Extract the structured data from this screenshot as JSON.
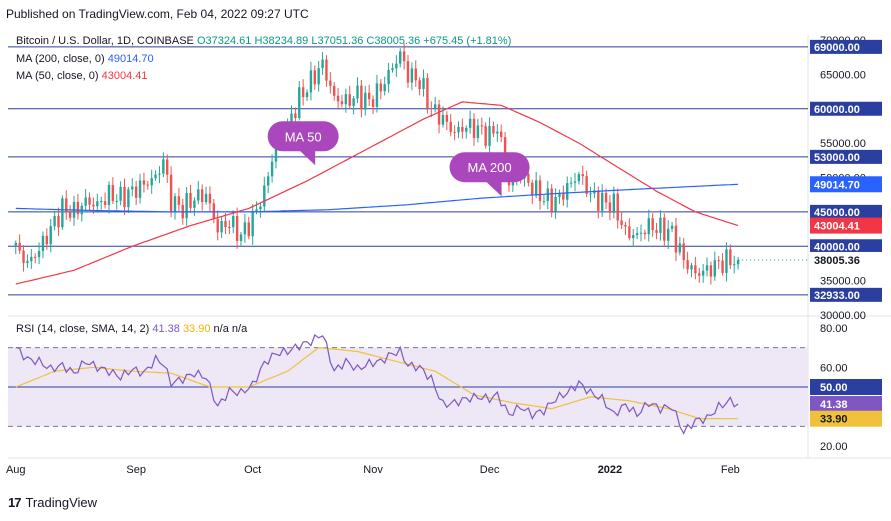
{
  "header": {
    "published": "Published on TradingView.com, Feb 04, 2022 09:27 UTC"
  },
  "legend": {
    "symbol": "Bitcoin / U.S. Dollar, 1D, COINBASE",
    "open": "O37324.61",
    "high": "H38234.89",
    "low": "L37051.36",
    "close": "C38005.36",
    "change": "+675.45 (+1.81%)",
    "ma200_label": "MA (200, close, 0)",
    "ma200_value": "49014.70",
    "ma50_label": "MA (50, close, 0)",
    "ma50_value": "43004.41",
    "rsi_label": "RSI (14, close, SMA, 14, 2)",
    "rsi_value": "41.38",
    "rsi_sma_value": "33.90",
    "rsi_na1": "n/a",
    "rsi_na2": "n/a"
  },
  "footer": {
    "brand": "TradingView"
  },
  "colors": {
    "up": "#26a69a",
    "down": "#ef5350",
    "ma200": "#2962ff",
    "ma50": "#f23645",
    "hline": "#2a3f9f",
    "rsi": "#7e57c2",
    "rsi_sma": "#f0c23c",
    "rsi_band": "#ede7f6",
    "callout": "#ab47bc",
    "price_tag": "#089981"
  },
  "chart_data": [
    {
      "type": "candlestick",
      "title": "Bitcoin / U.S. Dollar, 1D, COINBASE",
      "ylim": [
        30000,
        70000
      ],
      "y_ticks": [
        30000,
        35000,
        40000,
        45000,
        50000,
        55000,
        60000,
        65000,
        70000
      ],
      "x_labels": [
        "Aug",
        "Sep",
        "Oct",
        "Nov",
        "Dec",
        "2022",
        "Feb"
      ],
      "x_label_days": [
        0,
        31,
        61,
        92,
        122,
        153,
        184
      ],
      "horizontal_levels": [
        {
          "value": 69000,
          "label": "69000.00"
        },
        {
          "value": 60000,
          "label": "60000.00"
        },
        {
          "value": 53000,
          "label": "53000.00"
        },
        {
          "value": 45000,
          "label": "45000.00"
        },
        {
          "value": 40000,
          "label": "40000.00"
        },
        {
          "value": 32933,
          "label": "32933.00"
        }
      ],
      "price_tags": [
        {
          "value": 49014.7,
          "label": "49014.70",
          "kind": "ma200"
        },
        {
          "value": 43004.41,
          "label": "43004.41",
          "kind": "ma50"
        },
        {
          "value": 38005.36,
          "label": "38005.36",
          "kind": "last"
        }
      ],
      "close_anchors": [
        [
          0,
          39800
        ],
        [
          3,
          37500
        ],
        [
          6,
          39500
        ],
        [
          9,
          42500
        ],
        [
          12,
          45500
        ],
        [
          15,
          45000
        ],
        [
          18,
          46500
        ],
        [
          21,
          46000
        ],
        [
          24,
          47500
        ],
        [
          27,
          47000
        ],
        [
          30,
          48000
        ],
        [
          33,
          49000
        ],
        [
          36,
          50000
        ],
        [
          38,
          52500
        ],
        [
          40,
          46500
        ],
        [
          43,
          45500
        ],
        [
          46,
          47000
        ],
        [
          49,
          47500
        ],
        [
          52,
          42500
        ],
        [
          55,
          43500
        ],
        [
          58,
          41500
        ],
        [
          61,
          44000
        ],
        [
          64,
          48000
        ],
        [
          67,
          55000
        ],
        [
          70,
          57500
        ],
        [
          73,
          61500
        ],
        [
          76,
          64000
        ],
        [
          79,
          66500
        ],
        [
          82,
          61500
        ],
        [
          85,
          61000
        ],
        [
          88,
          62000
        ],
        [
          91,
          61000
        ],
        [
          94,
          63000
        ],
        [
          97,
          66000
        ],
        [
          99,
          68000
        ],
        [
          101,
          65000
        ],
        [
          104,
          64000
        ],
        [
          107,
          60000
        ],
        [
          110,
          58500
        ],
        [
          113,
          56500
        ],
        [
          116,
          57500
        ],
        [
          119,
          57000
        ],
        [
          122,
          56000
        ],
        [
          124,
          57500
        ],
        [
          127,
          49000
        ],
        [
          130,
          50500
        ],
        [
          133,
          48500
        ],
        [
          136,
          47000
        ],
        [
          139,
          46500
        ],
        [
          142,
          48500
        ],
        [
          145,
          50500
        ],
        [
          148,
          47500
        ],
        [
          151,
          46500
        ],
        [
          154,
          46000
        ],
        [
          157,
          42000
        ],
        [
          160,
          41500
        ],
        [
          163,
          43000
        ],
        [
          166,
          42500
        ],
        [
          169,
          42000
        ],
        [
          172,
          38000
        ],
        [
          175,
          36000
        ],
        [
          178,
          36500
        ],
        [
          181,
          37500
        ],
        [
          184,
          38000
        ],
        [
          186,
          38005.36
        ]
      ],
      "ma200_anchors": [
        [
          0,
          45500
        ],
        [
          20,
          45200
        ],
        [
          40,
          45000
        ],
        [
          60,
          45000
        ],
        [
          80,
          45300
        ],
        [
          100,
          46000
        ],
        [
          120,
          47000
        ],
        [
          140,
          47700
        ],
        [
          160,
          48300
        ],
        [
          186,
          49014.7
        ]
      ],
      "ma50_anchors": [
        [
          0,
          34500
        ],
        [
          15,
          36500
        ],
        [
          30,
          40000
        ],
        [
          45,
          43000
        ],
        [
          60,
          45500
        ],
        [
          75,
          49500
        ],
        [
          90,
          54000
        ],
        [
          105,
          58500
        ],
        [
          115,
          61000
        ],
        [
          125,
          60500
        ],
        [
          135,
          58000
        ],
        [
          145,
          55000
        ],
        [
          155,
          51500
        ],
        [
          165,
          48000
        ],
        [
          175,
          45000
        ],
        [
          186,
          43004.41
        ]
      ],
      "callouts": [
        {
          "text": "MA 50",
          "day": 74,
          "value": 56000,
          "points_to": "ma50"
        },
        {
          "text": "MA 200",
          "day": 122,
          "value": 51500,
          "points_to": "ma200"
        }
      ]
    },
    {
      "type": "line",
      "title": "RSI (14, close, SMA, 14, 2)",
      "ylim": [
        15,
        85
      ],
      "y_ticks": [
        20.0,
        60.0,
        80.0
      ],
      "band": [
        30,
        70
      ],
      "levels": [
        {
          "value": 50,
          "label": "50.00"
        }
      ],
      "value_tags": [
        {
          "value": 41.38,
          "label": "41.38",
          "kind": "rsi"
        },
        {
          "value": 33.9,
          "label": "33.90",
          "kind": "sma"
        }
      ],
      "rsi_anchors": [
        [
          0,
          70
        ],
        [
          3,
          64
        ],
        [
          6,
          63
        ],
        [
          9,
          59
        ],
        [
          12,
          61
        ],
        [
          15,
          57
        ],
        [
          18,
          63
        ],
        [
          21,
          60
        ],
        [
          24,
          58
        ],
        [
          27,
          55
        ],
        [
          30,
          59
        ],
        [
          33,
          57
        ],
        [
          36,
          64
        ],
        [
          38,
          62
        ],
        [
          40,
          52
        ],
        [
          43,
          54
        ],
        [
          46,
          57
        ],
        [
          49,
          55
        ],
        [
          52,
          40
        ],
        [
          55,
          48
        ],
        [
          58,
          47
        ],
        [
          61,
          51
        ],
        [
          64,
          62
        ],
        [
          67,
          67
        ],
        [
          70,
          68
        ],
        [
          73,
          71
        ],
        [
          76,
          73
        ],
        [
          79,
          77
        ],
        [
          82,
          58
        ],
        [
          85,
          63
        ],
        [
          88,
          59
        ],
        [
          91,
          62
        ],
        [
          94,
          63
        ],
        [
          97,
          67
        ],
        [
          99,
          68
        ],
        [
          101,
          61
        ],
        [
          104,
          60
        ],
        [
          107,
          54
        ],
        [
          110,
          41
        ],
        [
          113,
          42
        ],
        [
          116,
          44
        ],
        [
          119,
          45
        ],
        [
          122,
          44
        ],
        [
          124,
          46
        ],
        [
          127,
          36
        ],
        [
          130,
          40
        ],
        [
          133,
          36
        ],
        [
          136,
          38
        ],
        [
          139,
          44
        ],
        [
          142,
          47
        ],
        [
          145,
          52
        ],
        [
          148,
          47
        ],
        [
          151,
          44
        ],
        [
          154,
          36
        ],
        [
          157,
          41
        ],
        [
          160,
          36
        ],
        [
          163,
          42
        ],
        [
          166,
          39
        ],
        [
          169,
          40
        ],
        [
          172,
          27
        ],
        [
          175,
          33
        ],
        [
          178,
          34
        ],
        [
          181,
          40
        ],
        [
          184,
          43
        ],
        [
          186,
          41.38
        ]
      ],
      "sma_anchors": [
        [
          0,
          50
        ],
        [
          10,
          58
        ],
        [
          20,
          60
        ],
        [
          30,
          58
        ],
        [
          40,
          57
        ],
        [
          50,
          50
        ],
        [
          60,
          50
        ],
        [
          70,
          58
        ],
        [
          78,
          70
        ],
        [
          88,
          68
        ],
        [
          98,
          63
        ],
        [
          108,
          58
        ],
        [
          118,
          46
        ],
        [
          128,
          42
        ],
        [
          138,
          39
        ],
        [
          148,
          45
        ],
        [
          158,
          43
        ],
        [
          168,
          39
        ],
        [
          176,
          34
        ],
        [
          186,
          33.9
        ]
      ]
    }
  ]
}
